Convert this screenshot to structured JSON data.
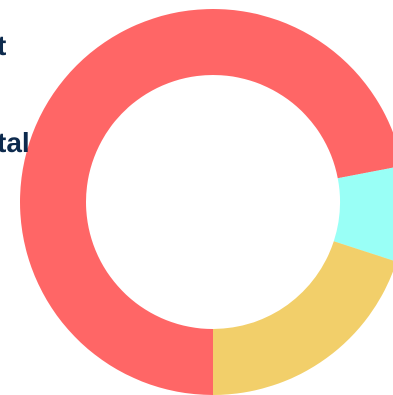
{
  "chart_data": {
    "type": "donut",
    "annotations": [
      "t",
      "tal"
    ],
    "categories": [
      null,
      null,
      null
    ],
    "series": [
      {
        "name": null,
        "values": [
          72,
          8,
          20
        ],
        "colors": [
          "#ff6666",
          "#99fff6",
          "#f2cf6a"
        ]
      }
    ]
  }
}
